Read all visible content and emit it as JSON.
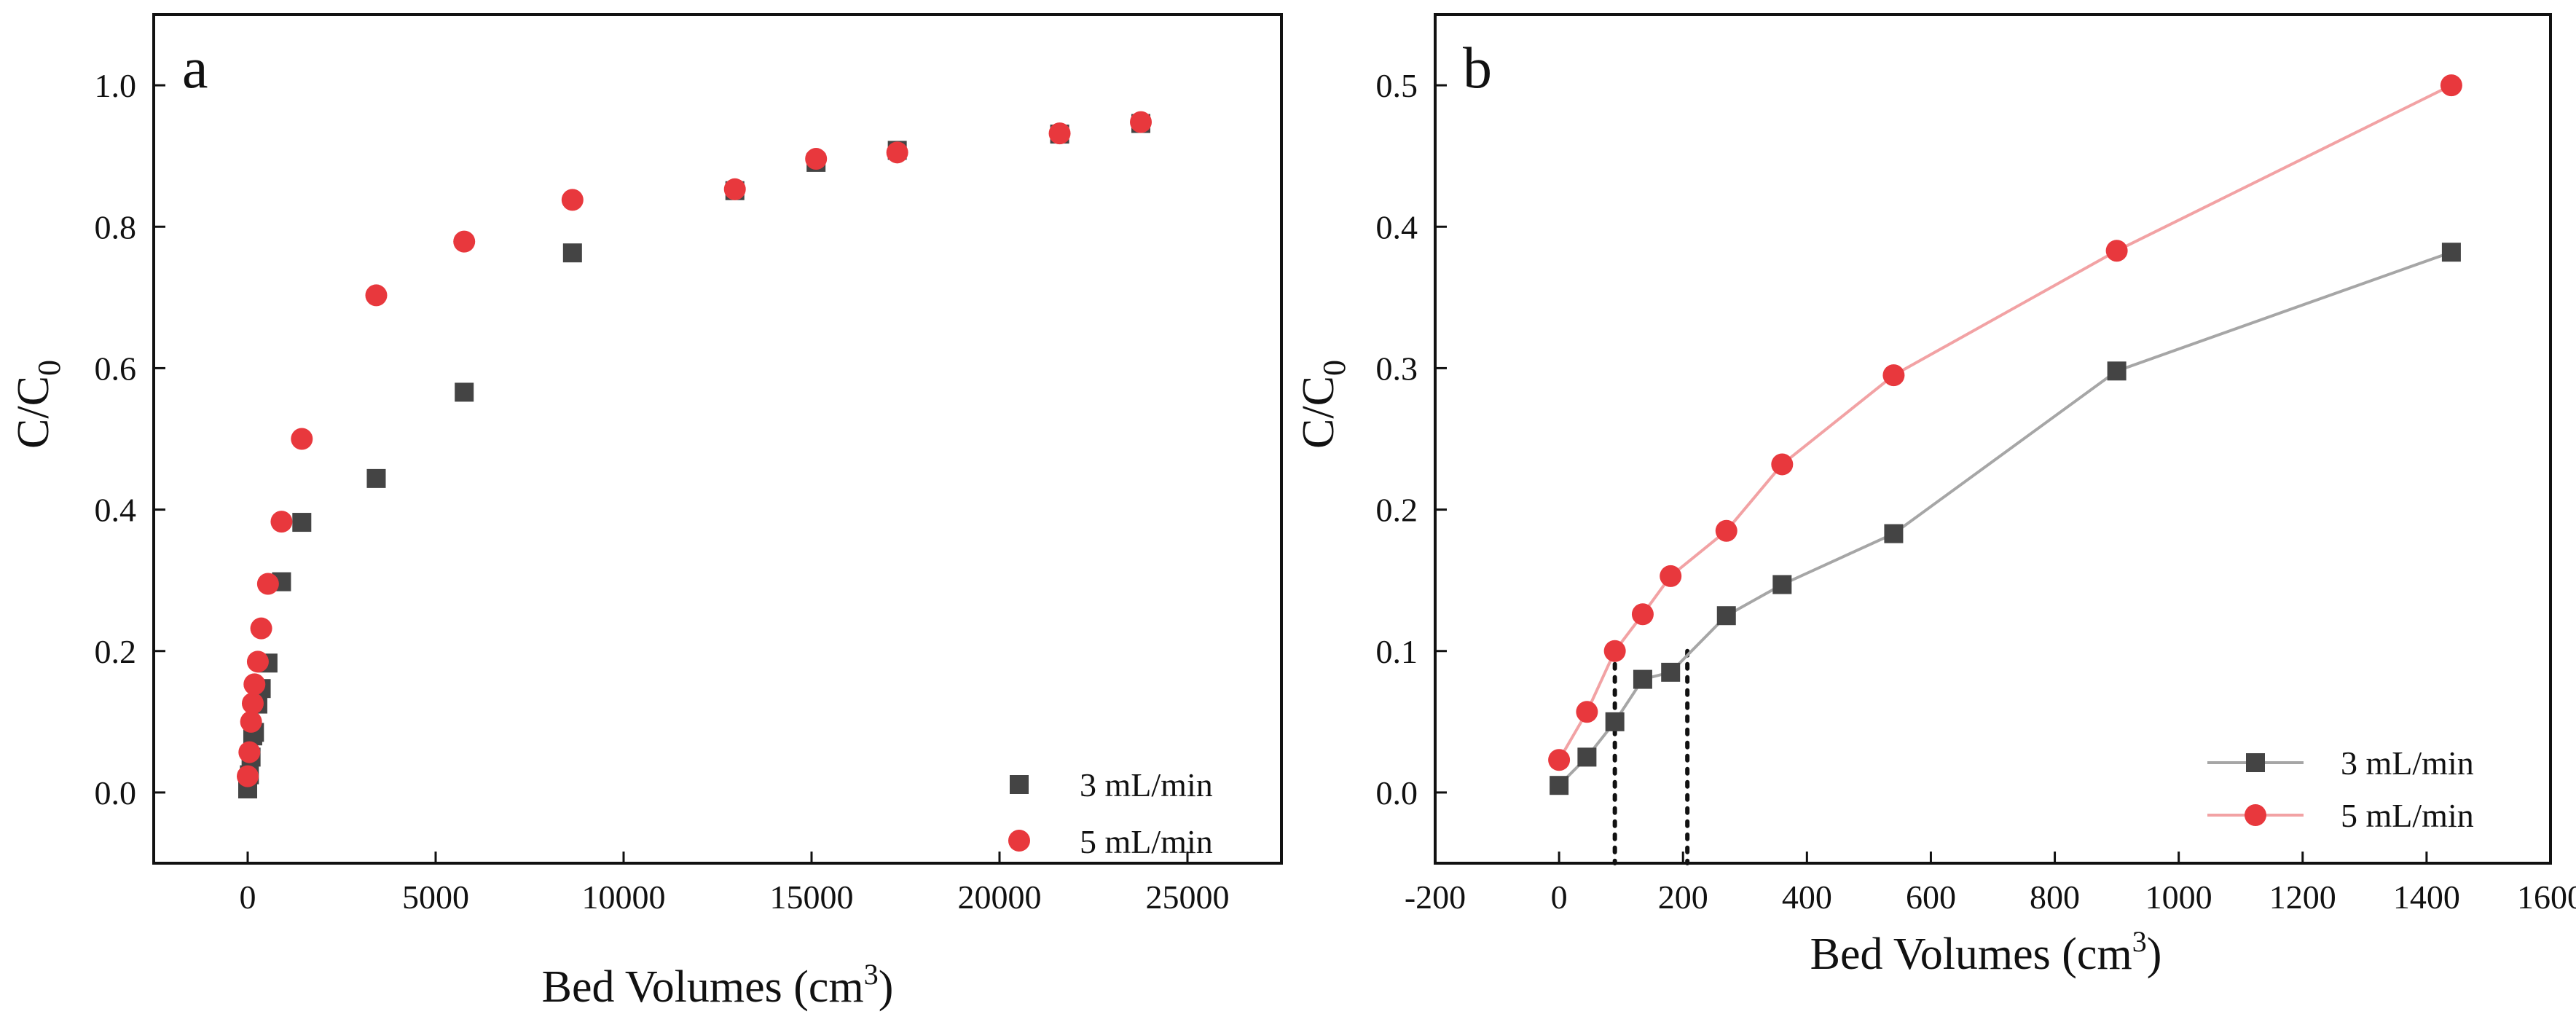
{
  "chart_data": [
    {
      "panel": "a",
      "type": "scatter",
      "xlabel": "Bed Volumes (cm",
      "xlabel_sup": "3",
      "xlabel_end": ")",
      "ylabel": "C/C",
      "ylabel_sub": "0",
      "xlim": [
        -2500,
        27500
      ],
      "ylim": [
        -0.1,
        1.1
      ],
      "xticks": [
        0,
        5000,
        10000,
        15000,
        20000,
        25000
      ],
      "xtick_labels": [
        "0",
        "5000",
        "10000",
        "15000",
        "20000",
        "25000"
      ],
      "yticks": [
        0.0,
        0.2,
        0.4,
        0.6,
        0.8,
        1.0
      ],
      "ytick_labels": [
        "0.0",
        "0.2",
        "0.4",
        "0.6",
        "0.8",
        "1.0"
      ],
      "legend_position": "bottom-right",
      "series": [
        {
          "name": "3 mL/min",
          "marker": "square",
          "color": "#444444",
          "connected": false,
          "x": [
            0,
            45,
            90,
            135,
            180,
            270,
            360,
            540,
            900,
            1440,
            3420,
            5760,
            8640,
            12960,
            15120,
            17280,
            21600,
            23760
          ],
          "y": [
            0.005,
            0.025,
            0.05,
            0.08,
            0.085,
            0.125,
            0.147,
            0.183,
            0.298,
            0.382,
            0.444,
            0.566,
            0.763,
            0.851,
            0.891,
            0.908,
            0.931,
            0.946
          ]
        },
        {
          "name": "5 mL/min",
          "marker": "circle",
          "color": "#e8383d",
          "connected": false,
          "x": [
            0,
            45,
            90,
            135,
            180,
            270,
            360,
            540,
            900,
            1440,
            3420,
            5760,
            8640,
            12960,
            15120,
            17280,
            21600,
            23760
          ],
          "y": [
            0.023,
            0.057,
            0.1,
            0.126,
            0.153,
            0.185,
            0.232,
            0.295,
            0.383,
            0.5,
            0.703,
            0.779,
            0.838,
            0.853,
            0.896,
            0.905,
            0.932,
            0.948
          ]
        }
      ]
    },
    {
      "panel": "b",
      "type": "line",
      "xlabel": "Bed Volumes (cm",
      "xlabel_sup": "3",
      "xlabel_end": ")",
      "ylabel": "C/C",
      "ylabel_sub": "0",
      "xlim": [
        -200,
        1600
      ],
      "ylim": [
        -0.05,
        0.55
      ],
      "xticks": [
        -200,
        0,
        200,
        400,
        600,
        800,
        1000,
        1200,
        1400,
        1600
      ],
      "xtick_labels": [
        "-200",
        "0",
        "200",
        "400",
        "600",
        "800",
        "1000",
        "1200",
        "1400",
        "1600"
      ],
      "yticks": [
        0.0,
        0.1,
        0.2,
        0.3,
        0.4,
        0.5
      ],
      "ytick_labels": [
        "0.0",
        "0.1",
        "0.2",
        "0.3",
        "0.4",
        "0.5"
      ],
      "legend_position": "bottom-right",
      "annotations": [
        {
          "type": "vertical-dotted-line",
          "x": 90,
          "y_from": -0.05,
          "y_to": 0.1
        },
        {
          "type": "vertical-dotted-line",
          "x": 207,
          "y_from": -0.05,
          "y_to": 0.1
        }
      ],
      "series": [
        {
          "name": "3 mL/min",
          "marker": "square",
          "color": "#444444",
          "line_color": "#a6a6a6",
          "connected": true,
          "x": [
            0,
            45,
            90,
            135,
            180,
            270,
            360,
            540,
            900,
            1440
          ],
          "y": [
            0.005,
            0.025,
            0.05,
            0.08,
            0.085,
            0.125,
            0.147,
            0.183,
            0.298,
            0.382
          ]
        },
        {
          "name": "5 mL/min",
          "marker": "circle",
          "color": "#e8383d",
          "line_color": "#f2a2a4",
          "connected": true,
          "x": [
            0,
            45,
            90,
            135,
            180,
            270,
            360,
            540,
            900,
            1440
          ],
          "y": [
            0.023,
            0.057,
            0.1,
            0.126,
            0.153,
            0.185,
            0.232,
            0.295,
            0.383,
            0.5
          ]
        }
      ]
    }
  ]
}
